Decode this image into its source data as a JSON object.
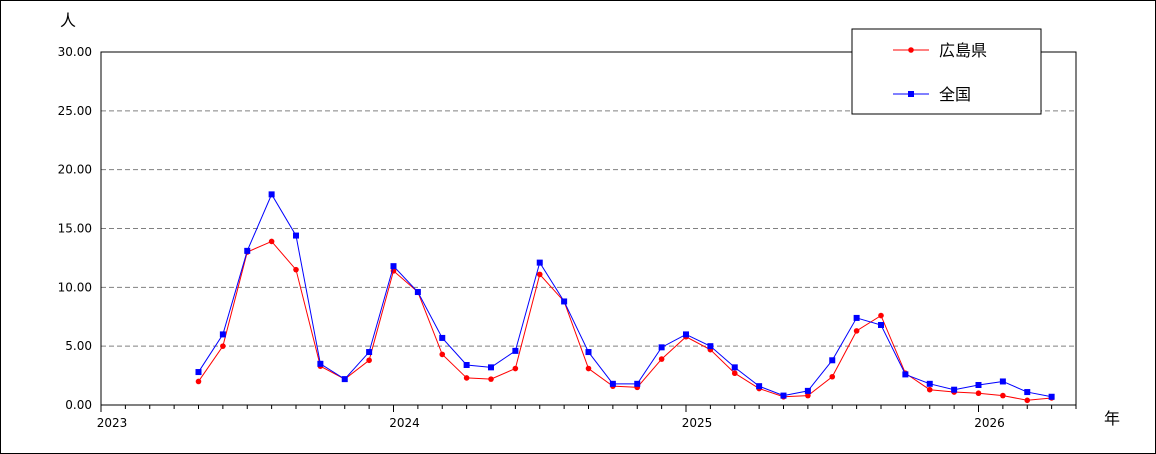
{
  "chart_data": {
    "type": "line",
    "ylabel": "人",
    "xlabel": "年",
    "ylim": [
      0,
      30
    ],
    "y_ticks": [
      "0.00",
      "5.00",
      "10.00",
      "15.00",
      "20.00",
      "25.00",
      "30.00"
    ],
    "x_ticks": [
      "2023",
      "2024",
      "2025",
      "2026"
    ],
    "grid": "horizontal dashed",
    "legend_position": "top-right",
    "x": [
      "2023-05",
      "2023-06",
      "2023-07",
      "2023-08",
      "2023-09",
      "2023-10",
      "2023-11",
      "2023-12",
      "2024-01",
      "2024-02",
      "2024-03",
      "2024-04",
      "2024-05",
      "2024-06",
      "2024-07",
      "2024-08",
      "2024-09",
      "2024-10",
      "2024-11",
      "2024-12",
      "2025-01",
      "2025-02",
      "2025-03",
      "2025-04",
      "2025-05",
      "2025-06",
      "2025-07",
      "2025-08",
      "2025-09",
      "2025-10",
      "2025-11",
      "2025-12",
      "2026-01",
      "2026-02",
      "2026-03",
      "2026-04"
    ],
    "series": [
      {
        "name": "広島県",
        "color": "#ff0000",
        "marker": "circle",
        "values": [
          2.0,
          5.0,
          13.0,
          13.9,
          11.5,
          3.3,
          2.2,
          3.8,
          11.4,
          9.6,
          4.3,
          2.3,
          2.2,
          3.1,
          11.1,
          8.8,
          3.1,
          1.6,
          1.5,
          3.9,
          5.8,
          4.7,
          2.7,
          1.4,
          0.7,
          0.8,
          2.4,
          6.3,
          7.6,
          2.7,
          1.3,
          1.1,
          1.0,
          0.8,
          0.4,
          0.6
        ]
      },
      {
        "name": "全国",
        "color": "#0000ff",
        "marker": "square",
        "values": [
          2.8,
          6.0,
          13.1,
          17.9,
          14.4,
          3.5,
          2.2,
          4.5,
          11.8,
          9.6,
          5.7,
          3.4,
          3.2,
          4.6,
          12.1,
          8.8,
          4.5,
          1.8,
          1.8,
          4.9,
          6.0,
          5.0,
          3.2,
          1.6,
          0.8,
          1.2,
          3.8,
          7.4,
          6.8,
          2.6,
          1.8,
          1.3,
          1.7,
          2.0,
          1.1,
          0.7
        ]
      }
    ]
  }
}
